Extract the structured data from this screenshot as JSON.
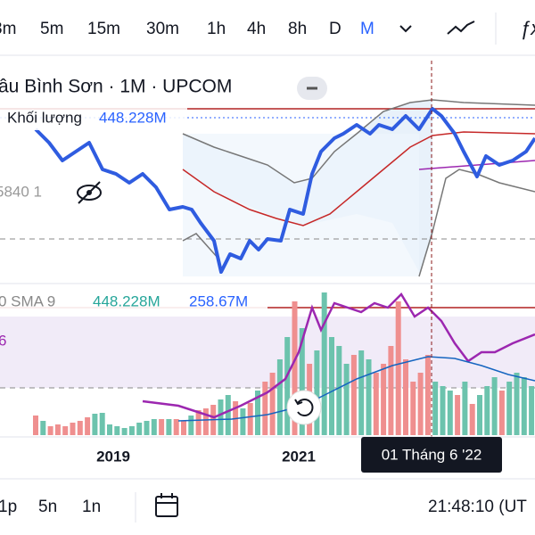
{
  "toolbar": {
    "intervals": [
      "3m",
      "5m",
      "15m",
      "30m",
      "1h",
      "4h",
      "8h",
      "D",
      "M"
    ]
  },
  "chart": {
    "title": "âu Bình Sơn · 1M · UPCOM",
    "volume_label": "Khối lượng",
    "volume_value": "448.228M",
    "hidden_indicator": "5840 1",
    "sma_label": "0 SMA 9",
    "sma_volume": "448.228M",
    "sma_value": "258.67M",
    "side_value": "6",
    "x_labels": [
      "2019",
      "2021"
    ],
    "crosshair_date": "01 Tháng 6 '22"
  },
  "bottom_bar": {
    "ranges": [
      "1p",
      "5n",
      "1n"
    ],
    "clock": "21:48:10 (UT"
  }
}
